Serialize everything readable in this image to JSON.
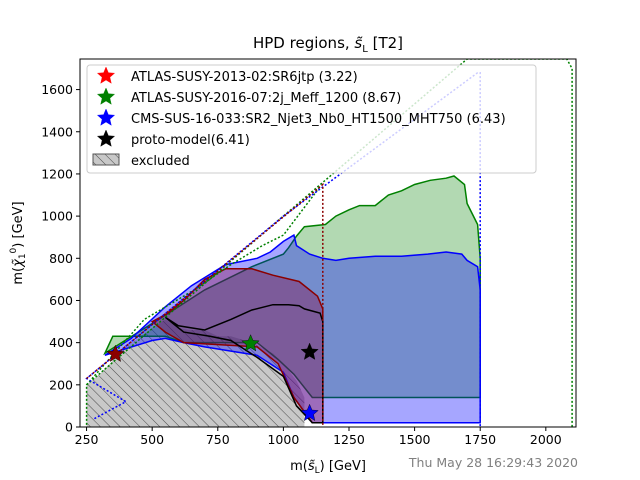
{
  "chart_data": {
    "type": "area",
    "title": "HPD regions, ŝ_L [T2]",
    "xlabel": "m(ŝ_L) [GeV]",
    "ylabel": "m(χ̃₁⁰) [GeV]",
    "xlim": [
      225,
      2115
    ],
    "ylim": [
      0,
      1745
    ],
    "xticks": [
      250,
      500,
      750,
      1000,
      1250,
      1500,
      1750,
      2000
    ],
    "yticks": [
      0,
      200,
      400,
      600,
      800,
      1000,
      1200,
      1400,
      1600
    ],
    "timestamp": "Thu May 28 16:29:43 2020",
    "legend": [
      {
        "label": "ATLAS-SUSY-2013-02:SR6jtp (3.22)",
        "color": "#ff0000",
        "marker": "star"
      },
      {
        "label": "ATLAS-SUSY-2016-07:2j_Meff_1200 (8.67)",
        "color": "#008000",
        "marker": "star"
      },
      {
        "label": "CMS-SUS-16-033:SR2_Njet3_Nb0_HT1500_MHT750 (6.43)",
        "color": "#0000ff",
        "marker": "star"
      },
      {
        "label": "proto-model(6.41)",
        "color": "#000000",
        "marker": "star"
      },
      {
        "label": "excluded",
        "color": "#c8c8c8",
        "marker": "hatched-box"
      }
    ],
    "series": [
      {
        "name": "ATLAS-SUSY-2016-07:2j_Meff_1200",
        "color": "#008000",
        "fill": "rgba(0,128,0,0.30)",
        "hpd_region": [
          [
            320,
            350
          ],
          [
            550,
            530
          ],
          [
            700,
            650
          ],
          [
            880,
            760
          ],
          [
            1000,
            820
          ],
          [
            1020,
            850
          ],
          [
            1050,
            905
          ],
          [
            1080,
            950
          ],
          [
            1160,
            960
          ],
          [
            1200,
            1000
          ],
          [
            1250,
            1030
          ],
          [
            1290,
            1050
          ],
          [
            1350,
            1050
          ],
          [
            1400,
            1100
          ],
          [
            1450,
            1120
          ],
          [
            1500,
            1150
          ],
          [
            1560,
            1170
          ],
          [
            1620,
            1180
          ],
          [
            1650,
            1190
          ],
          [
            1690,
            1150
          ],
          [
            1700,
            1060
          ],
          [
            1740,
            960
          ],
          [
            1745,
            880
          ],
          [
            1750,
            800
          ],
          [
            1750,
            650
          ],
          [
            1750,
            140
          ],
          [
            1110,
            140
          ],
          [
            1040,
            250
          ],
          [
            980,
            320
          ],
          [
            900,
            400
          ],
          [
            620,
            400
          ],
          [
            550,
            430
          ],
          [
            350,
            430
          ]
        ],
        "excluded_contour": [
          [
            250,
            200
          ],
          [
            470,
            510
          ],
          [
            660,
            650
          ],
          [
            800,
            770
          ],
          [
            920,
            860
          ],
          [
            1000,
            910
          ],
          [
            1140,
            1140
          ]
        ],
        "outer_contour": [
          [
            250,
            10
          ],
          [
            250,
            200
          ],
          [
            1000,
            1000
          ],
          [
            1700,
            1745
          ],
          [
            2080,
            1745
          ],
          [
            2100,
            1700
          ],
          [
            2100,
            0
          ]
        ],
        "best_point": {
          "x": 875,
          "y": 395
        }
      },
      {
        "name": "CMS-SUS-16-033:SR2_Njet3_Nb0_HT1500_MHT750",
        "color": "#0000ff",
        "fill": "rgba(0,0,255,0.35)",
        "hpd_region": [
          [
            320,
            340
          ],
          [
            420,
            420
          ],
          [
            550,
            570
          ],
          [
            650,
            670
          ],
          [
            780,
            770
          ],
          [
            900,
            800
          ],
          [
            950,
            830
          ],
          [
            1000,
            880
          ],
          [
            1040,
            910
          ],
          [
            1050,
            860
          ],
          [
            1100,
            820
          ],
          [
            1150,
            800
          ],
          [
            1200,
            790
          ],
          [
            1250,
            800
          ],
          [
            1350,
            810
          ],
          [
            1450,
            810
          ],
          [
            1550,
            820
          ],
          [
            1620,
            830
          ],
          [
            1680,
            820
          ],
          [
            1700,
            790
          ],
          [
            1740,
            760
          ],
          [
            1750,
            650
          ],
          [
            1750,
            20
          ],
          [
            1110,
            20
          ],
          [
            1040,
            140
          ],
          [
            1000,
            260
          ],
          [
            900,
            340
          ],
          [
            700,
            380
          ],
          [
            620,
            400
          ],
          [
            550,
            420
          ],
          [
            500,
            410
          ]
        ],
        "excluded_contour": [
          [
            280,
            40
          ],
          [
            400,
            120
          ],
          [
            250,
            230
          ],
          [
            1000,
            1000
          ],
          [
            1740,
            1680
          ],
          [
            1750,
            1680
          ],
          [
            1750,
            0
          ]
        ],
        "best_point": {
          "x": 1100,
          "y": 65
        }
      },
      {
        "name": "ATLAS-SUSY-2013-02:SR6jtp",
        "color": "#8b0000",
        "fill": "rgba(139,0,60,0.35)",
        "hpd_region": [
          [
            500,
            500
          ],
          [
            560,
            540
          ],
          [
            620,
            600
          ],
          [
            700,
            700
          ],
          [
            780,
            750
          ],
          [
            880,
            750
          ],
          [
            960,
            720
          ],
          [
            1060,
            690
          ],
          [
            1130,
            620
          ],
          [
            1150,
            560
          ],
          [
            1150,
            20
          ],
          [
            1110,
            20
          ],
          [
            1040,
            140
          ],
          [
            980,
            300
          ],
          [
            900,
            380
          ],
          [
            620,
            400
          ],
          [
            550,
            450
          ]
        ],
        "excluded_contour": [
          [
            250,
            230
          ],
          [
            1150,
            1150
          ],
          [
            1150,
            0
          ]
        ],
        "best_point": {
          "x": 360,
          "y": 345
        }
      },
      {
        "name": "proto-model(6.41)",
        "color": "#000000",
        "fill": "rgba(0,0,0,0)",
        "hpd_region": [
          [
            550,
            520
          ],
          [
            600,
            480
          ],
          [
            700,
            460
          ],
          [
            800,
            510
          ],
          [
            880,
            555
          ],
          [
            960,
            580
          ],
          [
            1020,
            580
          ],
          [
            1060,
            575
          ],
          [
            1080,
            560
          ],
          [
            1140,
            540
          ],
          [
            1150,
            500
          ],
          [
            1150,
            20
          ],
          [
            1110,
            20
          ],
          [
            1050,
            100
          ],
          [
            1000,
            240
          ],
          [
            900,
            330
          ],
          [
            850,
            370
          ],
          [
            800,
            410
          ],
          [
            720,
            430
          ],
          [
            620,
            450
          ],
          [
            580,
            490
          ]
        ],
        "best_point": {
          "x": 1100,
          "y": 355
        }
      },
      {
        "name": "excluded",
        "color": "#000000",
        "fill": "#c8c8c8",
        "region": [
          [
            250,
            0
          ],
          [
            250,
            200
          ],
          [
            300,
            250
          ],
          [
            400,
            380
          ],
          [
            500,
            470
          ],
          [
            550,
            510
          ],
          [
            600,
            470
          ],
          [
            640,
            460
          ],
          [
            700,
            460
          ],
          [
            750,
            430
          ],
          [
            800,
            430
          ],
          [
            880,
            400
          ],
          [
            960,
            350
          ],
          [
            1000,
            300
          ],
          [
            1050,
            220
          ],
          [
            1080,
            140
          ],
          [
            1080,
            0
          ]
        ]
      }
    ]
  }
}
